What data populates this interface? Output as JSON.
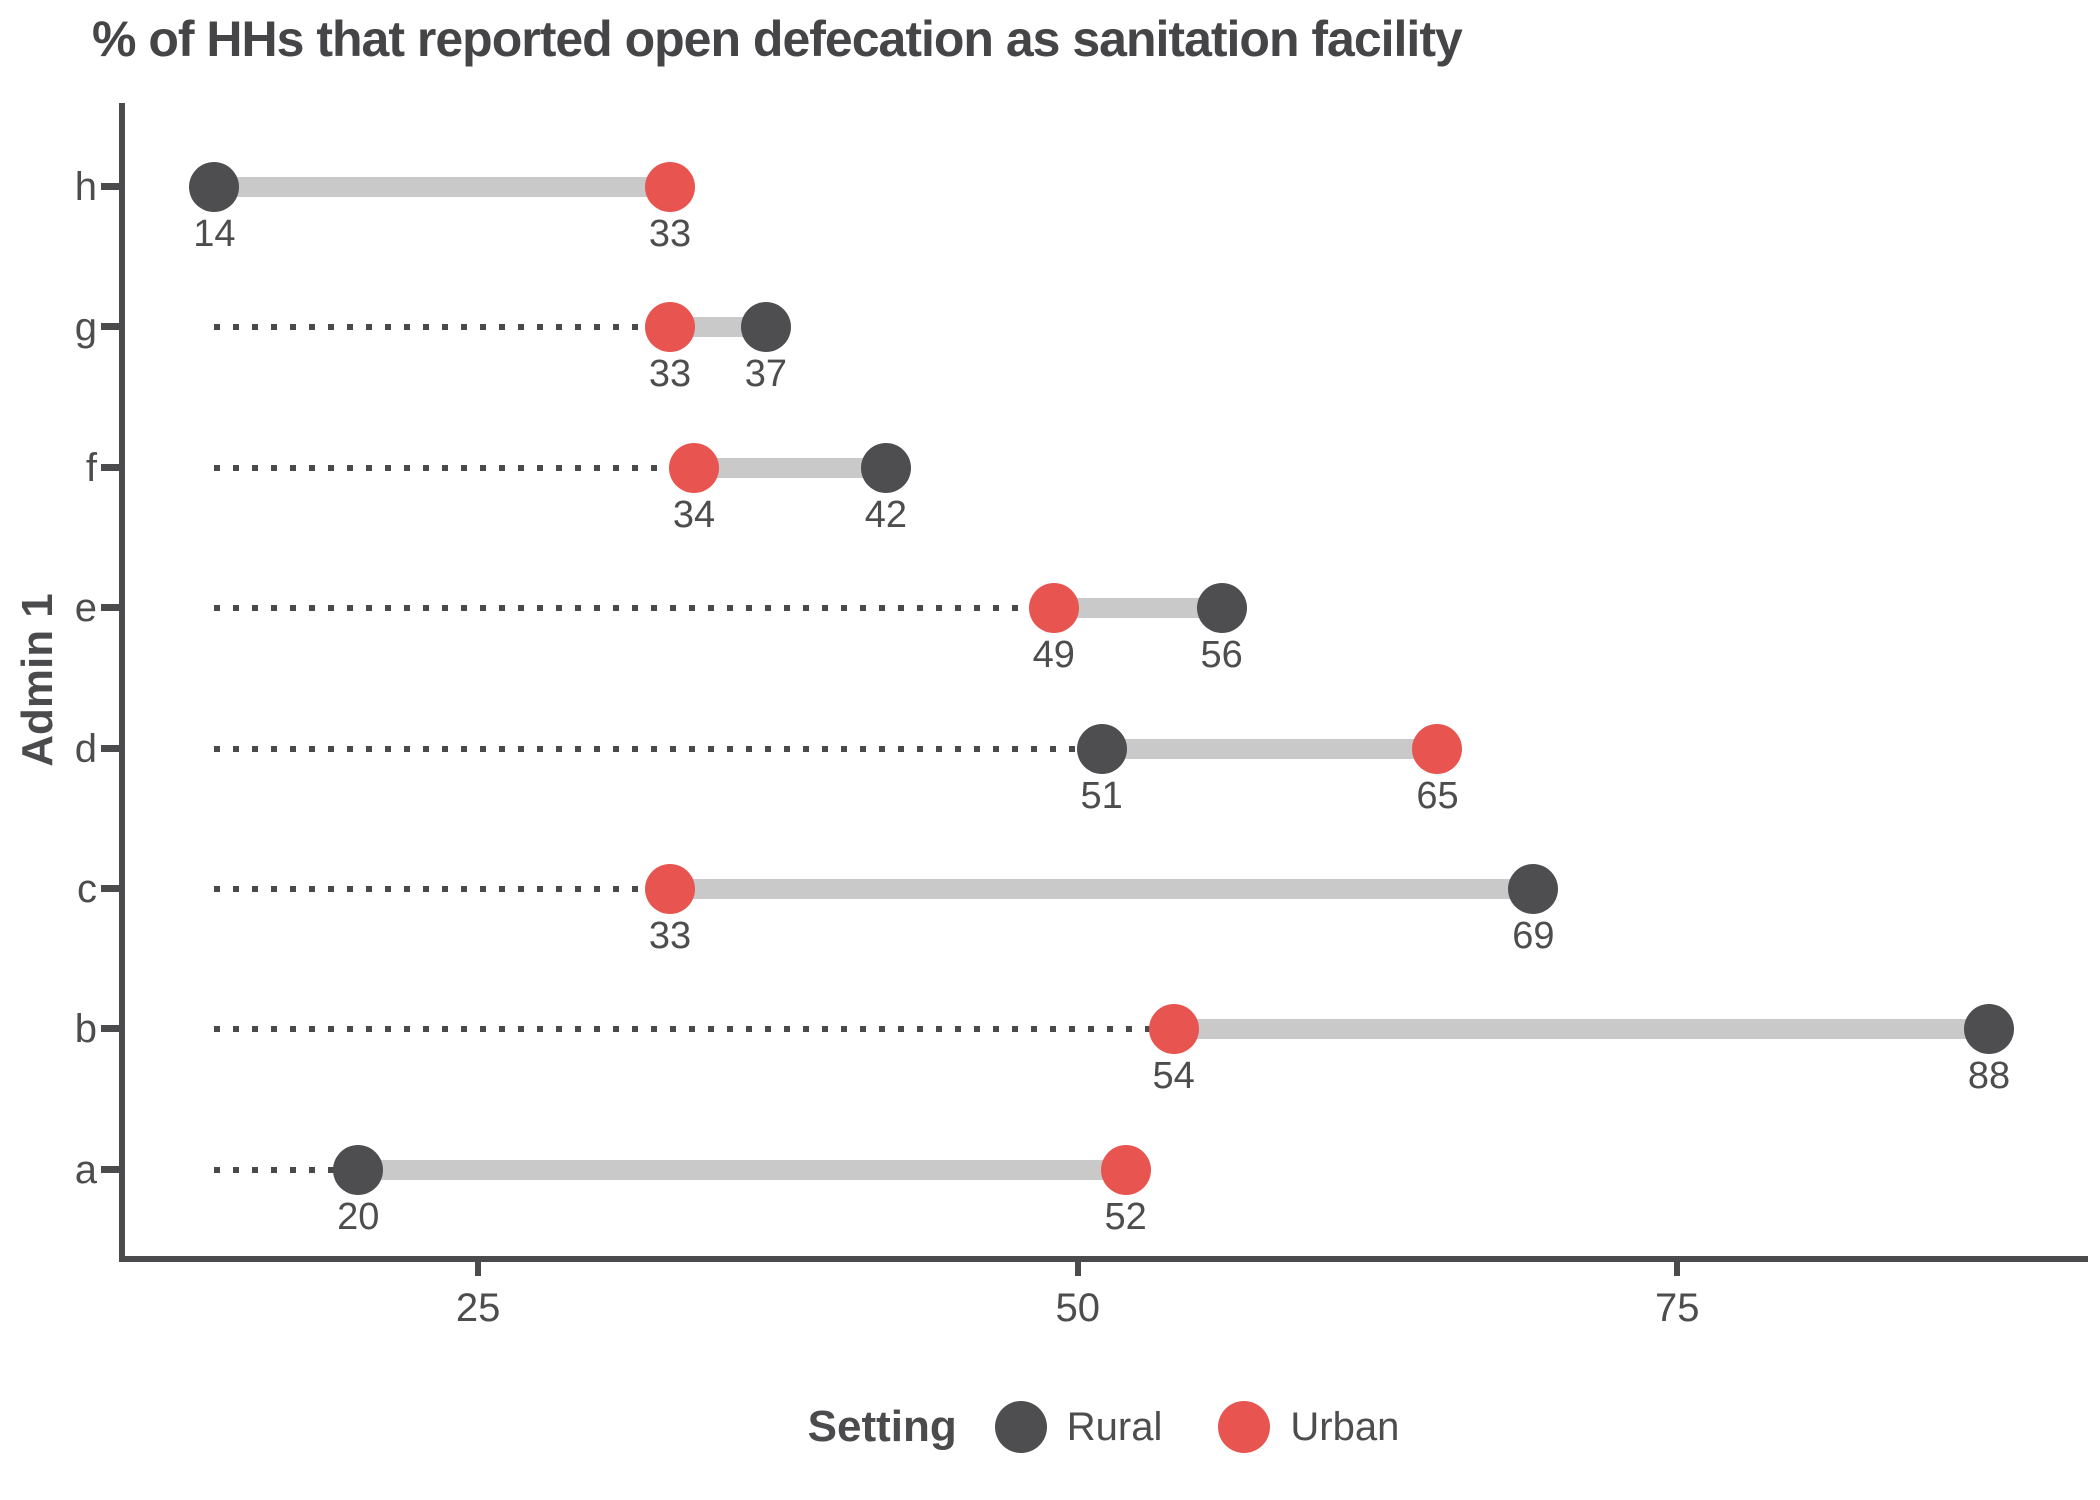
{
  "chart_data": {
    "type": "dumbbell",
    "orientation": "horizontal",
    "title": "% of HHs that reported open defecation as sanitation facility",
    "xlabel": "",
    "ylabel": "Admin 1",
    "categories": [
      "h",
      "g",
      "f",
      "e",
      "d",
      "c",
      "b",
      "a"
    ],
    "series": [
      {
        "name": "Rural",
        "color": "#4e4e50",
        "values": [
          14,
          37,
          42,
          56,
          51,
          69,
          88,
          20
        ]
      },
      {
        "name": "Urban",
        "color": "#e8544f",
        "values": [
          33,
          33,
          34,
          49,
          65,
          33,
          54,
          52
        ]
      }
    ],
    "x_ticks": [
      "25",
      "50",
      "75"
    ],
    "x_tick_values": [
      25,
      50,
      75
    ],
    "xlim": [
      10.15,
      92
    ],
    "dotted_baseline_value": 14,
    "grid": false,
    "value_labels_shown": true,
    "connector_color": "#c9c9c9",
    "dotted_line_color": "#4a4a4c",
    "axis_color": "#4b4b4d",
    "text_color": "#4d4d4f",
    "legend": {
      "title": "Setting",
      "position": "bottom",
      "entries": [
        "Rural",
        "Urban"
      ]
    }
  }
}
